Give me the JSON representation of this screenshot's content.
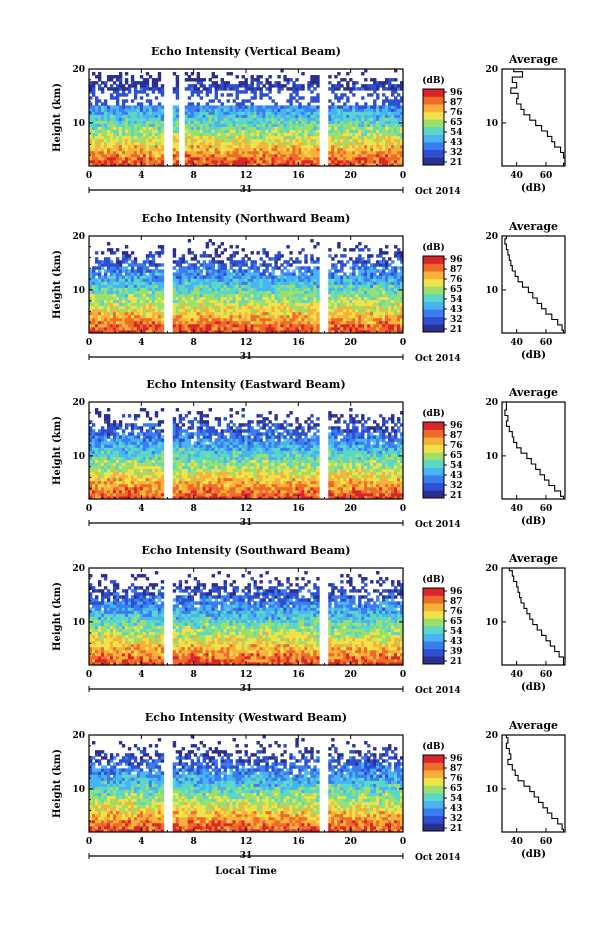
{
  "chart_data": [
    {
      "type": "heatmap",
      "title": "Echo Intensity (Vertical Beam)",
      "ylabel": "Height (km)",
      "x_ticks": [
        "0",
        "4",
        "8",
        "12",
        "16",
        "20",
        "0"
      ],
      "xlim": [
        0,
        24
      ],
      "ylim": [
        2,
        20
      ],
      "y_ticks": [
        "10",
        "20"
      ],
      "date_day": "31",
      "date_label": "Oct 2014",
      "data_gaps_hours": [
        [
          5.8,
          6.3
        ],
        [
          6.9,
          7.2
        ],
        [
          17.5,
          18.3
        ]
      ],
      "colorbar": {
        "unit": "(dB)",
        "ticks": [
          "96",
          "87",
          "76",
          "65",
          "54",
          "43",
          "32",
          "21"
        ],
        "range": [
          21,
          96
        ]
      },
      "profile": {
        "title": "Average",
        "xlabel": "(dB)",
        "x_ticks": [
          "40",
          "60"
        ],
        "xlim": [
          30,
          73
        ],
        "y_ticks": [
          "10",
          "20"
        ],
        "heights": [
          20,
          19,
          18,
          17,
          16,
          15,
          14,
          13,
          12,
          11,
          10,
          9,
          8,
          7,
          6,
          5,
          4,
          3,
          2
        ],
        "values": [
          38,
          44,
          37,
          40,
          36,
          41,
          40,
          43,
          45,
          49,
          53,
          57,
          61,
          64,
          66,
          70,
          72,
          73,
          72
        ]
      }
    },
    {
      "type": "heatmap",
      "title": "Echo Intensity (Northward Beam)",
      "ylabel": "Height (km)",
      "x_ticks": [
        "0",
        "4",
        "8",
        "12",
        "16",
        "20",
        "0"
      ],
      "xlim": [
        0,
        24
      ],
      "ylim": [
        2,
        20
      ],
      "y_ticks": [
        "10",
        "20"
      ],
      "date_day": "31",
      "date_label": "Oct 2014",
      "data_gaps_hours": [
        [
          5.8,
          6.3
        ],
        [
          17.5,
          18.3
        ]
      ],
      "colorbar": {
        "unit": "(dB)",
        "ticks": [
          "96",
          "87",
          "76",
          "65",
          "54",
          "43",
          "32",
          "21"
        ],
        "range": [
          21,
          96
        ]
      },
      "profile": {
        "title": "Average",
        "xlabel": "(dB)",
        "x_ticks": [
          "40",
          "60"
        ],
        "xlim": [
          30,
          73
        ],
        "y_ticks": [
          "10",
          "20"
        ],
        "heights": [
          20,
          19,
          18,
          17,
          16,
          15,
          14,
          13,
          12,
          11,
          10,
          9,
          8,
          7,
          6,
          5,
          4,
          3,
          2
        ],
        "values": [
          33,
          32,
          33,
          34,
          35,
          36,
          37,
          39,
          41,
          44,
          48,
          51,
          54,
          57,
          60,
          64,
          68,
          71,
          72
        ]
      }
    },
    {
      "type": "heatmap",
      "title": "Echo Intensity (Eastward Beam)",
      "ylabel": "Height (km)",
      "x_ticks": [
        "0",
        "4",
        "8",
        "12",
        "16",
        "20",
        "0"
      ],
      "xlim": [
        0,
        24
      ],
      "ylim": [
        2,
        20
      ],
      "y_ticks": [
        "10",
        "20"
      ],
      "date_day": "31",
      "date_label": "Oct 2014",
      "data_gaps_hours": [
        [
          5.8,
          6.3
        ],
        [
          17.5,
          18.3
        ]
      ],
      "colorbar": {
        "unit": "(dB)",
        "ticks": [
          "96",
          "87",
          "76",
          "65",
          "54",
          "43",
          "32",
          "21"
        ],
        "range": [
          21,
          96
        ]
      },
      "profile": {
        "title": "Average",
        "xlabel": "(dB)",
        "x_ticks": [
          "40",
          "60"
        ],
        "xlim": [
          30,
          73
        ],
        "y_ticks": [
          "10",
          "20"
        ],
        "heights": [
          20,
          19,
          18,
          17,
          16,
          15,
          14,
          13,
          12,
          11,
          10,
          9,
          8,
          7,
          6,
          5,
          4,
          3,
          2
        ],
        "values": [
          33,
          33,
          32,
          34,
          33,
          35,
          37,
          38,
          40,
          43,
          47,
          50,
          53,
          56,
          59,
          62,
          66,
          70,
          72
        ]
      }
    },
    {
      "type": "heatmap",
      "title": "Echo Intensity (Southward Beam)",
      "ylabel": "Height (km)",
      "x_ticks": [
        "0",
        "4",
        "8",
        "12",
        "16",
        "20",
        "0"
      ],
      "xlim": [
        0,
        24
      ],
      "ylim": [
        2,
        20
      ],
      "y_ticks": [
        "10",
        "20"
      ],
      "date_day": "31",
      "date_label": "Oct 2014",
      "data_gaps_hours": [
        [
          5.8,
          6.3
        ],
        [
          17.5,
          18.3
        ]
      ],
      "colorbar": {
        "unit": "(dB)",
        "ticks": [
          "96",
          "87",
          "76",
          "65",
          "54",
          "43",
          "39",
          "21"
        ],
        "range": [
          21,
          96
        ]
      },
      "profile": {
        "title": "Average",
        "xlabel": "(dB)",
        "x_ticks": [
          "40",
          "60"
        ],
        "xlim": [
          30,
          73
        ],
        "y_ticks": [
          "10",
          "20"
        ],
        "heights": [
          20,
          19,
          18,
          17,
          16,
          15,
          14,
          13,
          12,
          11,
          10,
          9,
          8,
          7,
          6,
          5,
          4,
          3,
          2
        ],
        "values": [
          35,
          37,
          38,
          40,
          41,
          42,
          43,
          45,
          47,
          49,
          51,
          54,
          57,
          60,
          63,
          66,
          69,
          72,
          72
        ]
      }
    },
    {
      "type": "heatmap",
      "title": "Echo Intensity (Westward Beam)",
      "ylabel": "Height (km)",
      "x_ticks": [
        "0",
        "4",
        "8",
        "12",
        "16",
        "20",
        "0"
      ],
      "xlim": [
        0,
        24
      ],
      "ylim": [
        2,
        20
      ],
      "y_ticks": [
        "10",
        "20"
      ],
      "date_day": "31",
      "date_label": "Oct 2014",
      "xlabel": "Local Time",
      "data_gaps_hours": [
        [
          5.8,
          6.3
        ],
        [
          17.5,
          18.3
        ]
      ],
      "colorbar": {
        "unit": "(dB)",
        "ticks": [
          "96",
          "87",
          "76",
          "65",
          "54",
          "43",
          "32",
          "21"
        ],
        "range": [
          21,
          96
        ]
      },
      "profile": {
        "title": "Average",
        "xlabel": "(dB)",
        "x_ticks": [
          "40",
          "60"
        ],
        "xlim": [
          30,
          73
        ],
        "y_ticks": [
          "10",
          "20"
        ],
        "heights": [
          20,
          19,
          18,
          17,
          16,
          15,
          14,
          13,
          12,
          11,
          10,
          9,
          8,
          7,
          6,
          5,
          4,
          3,
          2
        ],
        "values": [
          33,
          34,
          33,
          35,
          36,
          34,
          37,
          39,
          41,
          45,
          49,
          52,
          55,
          58,
          61,
          64,
          68,
          71,
          72
        ]
      }
    }
  ]
}
